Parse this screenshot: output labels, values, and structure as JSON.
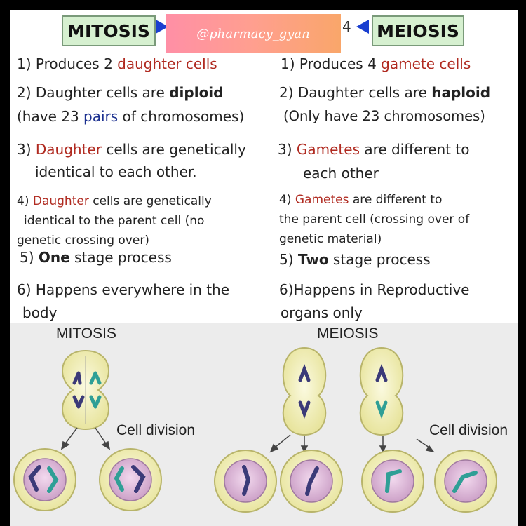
{
  "header": {
    "mitosis_title": "MITOSIS",
    "meiosis_title": "MEIOSIS",
    "watermark": "@pharmacy_gyan",
    "marker": "4"
  },
  "mitosis": {
    "p1_pre": "1) Produces 2 ",
    "p1_hl": "daughter cells",
    "p2_pre": "2) Daughter cells are ",
    "p2_b": "diploid",
    "p2b_pre": "(have 23 ",
    "p2b_hl": "pairs",
    "p2b_post": " of chromosomes)",
    "p3_pre": "3) ",
    "p3_hl": "Daughter",
    "p3_post": " cells are genetically",
    "p3_l2": "identical to each other.",
    "p4_pre": "4) ",
    "p4_hl": "Daughter",
    "p4_post": " cells are genetically",
    "p4_l2": "identical to the parent cell (no",
    "p4_l3": "genetic crossing over)",
    "p5_pre": "5) ",
    "p5_b": "One",
    "p5_post": " stage process",
    "p6_l1": "6) Happens everywhere in the",
    "p6_l2": "body"
  },
  "meiosis": {
    "p1_pre": "1)  Produces 4 ",
    "p1_hl": "gamete cells",
    "p2_pre": "2) Daughter cells are ",
    "p2_b": "haploid",
    "p2b": "(Only have 23 chromosomes)",
    "p3_pre": "3) ",
    "p3_hl": "Gametes",
    "p3_post": " are different to",
    "p3_l2": "each other",
    "p4_pre": "4) ",
    "p4_hl": "Gametes",
    "p4_post": " are different to",
    "p4_l2": "the parent cell (crossing over of",
    "p4_l3": "genetic material)",
    "p5_pre": "5) ",
    "p5_b": "Two",
    "p5_post": " stage process",
    "p6_l1": "6)Happens in Reproductive",
    "p6_l2": "organs only"
  },
  "diagram": {
    "mitosis_label": "MITOSIS",
    "meiosis_label": "MEIOSIS",
    "cell_division_left": "Cell division",
    "cell_division_right": "Cell division",
    "colors": {
      "cell_outer": "#f4f2b8",
      "cell_nucleus": "#d9b7d6",
      "chrom_teal": "#2f9f96",
      "chrom_purple": "#3b3a78"
    }
  }
}
